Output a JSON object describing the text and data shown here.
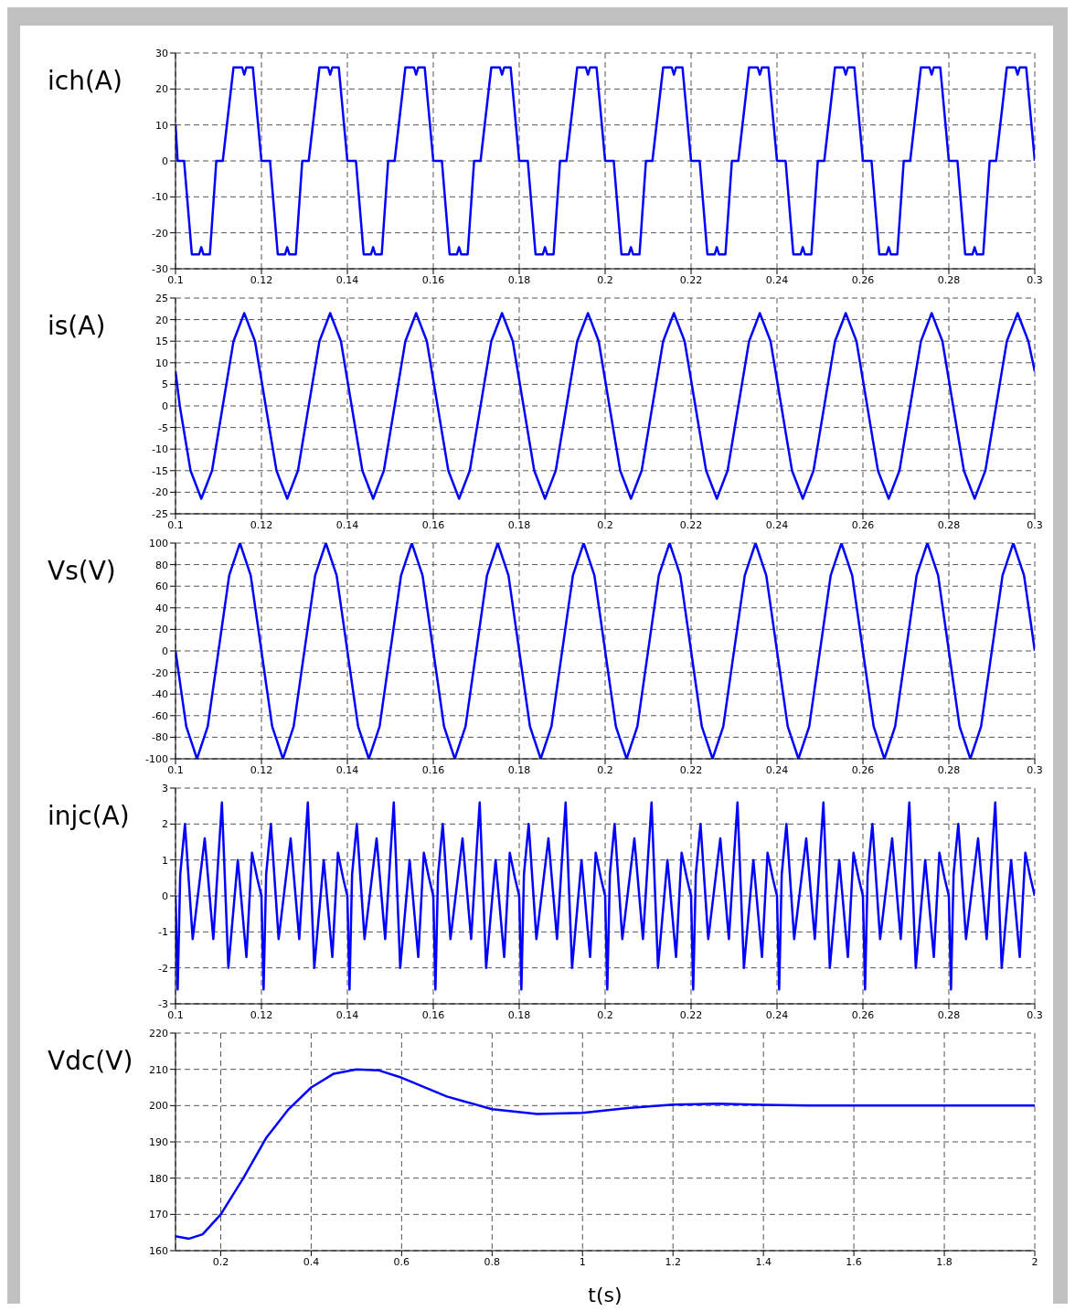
{
  "chart_data": [
    {
      "type": "line",
      "ylabel": "ich(A)",
      "color": "#0000ff",
      "marker": "none",
      "line_style": "solid",
      "grid": true,
      "xlim": [
        0.1,
        0.3
      ],
      "xticks": [
        0.1,
        0.12,
        0.14,
        0.16,
        0.18,
        0.2,
        0.22,
        0.24,
        0.26,
        0.28,
        0.3
      ],
      "ylim": [
        -30,
        30
      ],
      "yticks": [
        -30,
        -20,
        -10,
        0,
        10,
        20,
        30
      ],
      "x": [
        0.1,
        0.1005,
        0.102,
        0.1038,
        0.1055,
        0.106,
        0.1065,
        0.108,
        0.1095,
        0.111,
        0.1135,
        0.1155,
        0.116,
        0.1165,
        0.118,
        0.12,
        0.122,
        0.1238,
        0.1255,
        0.126,
        0.1265,
        0.128,
        0.1295,
        0.131,
        0.1335,
        0.1355,
        0.136,
        0.1365,
        0.138,
        0.14,
        0.142,
        0.1438,
        0.1455,
        0.146,
        0.1465,
        0.148,
        0.1495,
        0.151,
        0.1535,
        0.1555,
        0.156,
        0.1565,
        0.158,
        0.16,
        0.162,
        0.1638,
        0.1655,
        0.166,
        0.1665,
        0.168,
        0.1695,
        0.171,
        0.1735,
        0.1755,
        0.176,
        0.1765,
        0.178,
        0.18,
        0.182,
        0.1838,
        0.1855,
        0.186,
        0.1865,
        0.188,
        0.1895,
        0.191,
        0.1935,
        0.1955,
        0.196,
        0.1965,
        0.198,
        0.2,
        0.202,
        0.2038,
        0.2055,
        0.206,
        0.2065,
        0.208,
        0.2095,
        0.211,
        0.2135,
        0.2155,
        0.216,
        0.2165,
        0.218,
        0.22,
        0.222,
        0.2238,
        0.2255,
        0.226,
        0.2265,
        0.228,
        0.2295,
        0.231,
        0.2335,
        0.2355,
        0.236,
        0.2365,
        0.238,
        0.24,
        0.242,
        0.2438,
        0.2455,
        0.246,
        0.2465,
        0.248,
        0.2495,
        0.251,
        0.2535,
        0.2555,
        0.256,
        0.2565,
        0.258,
        0.26,
        0.262,
        0.2638,
        0.2655,
        0.266,
        0.2665,
        0.268,
        0.2695,
        0.271,
        0.2735,
        0.2755,
        0.276,
        0.2765,
        0.278,
        0.28,
        0.282,
        0.2838,
        0.2855,
        0.286,
        0.2865,
        0.288,
        0.2895,
        0.291,
        0.2935,
        0.2955,
        0.296,
        0.2965,
        0.298,
        0.3
      ],
      "values": [
        10,
        0,
        0,
        -26,
        -26,
        -24,
        -26,
        -26,
        0,
        0,
        26,
        26,
        24,
        26,
        26,
        0,
        0,
        -26,
        -26,
        -24,
        -26,
        -26,
        0,
        0,
        26,
        26,
        24,
        26,
        26,
        0,
        0,
        -26,
        -26,
        -24,
        -26,
        -26,
        0,
        0,
        26,
        26,
        24,
        26,
        26,
        0,
        0,
        -26,
        -26,
        -24,
        -26,
        -26,
        0,
        0,
        26,
        26,
        24,
        26,
        26,
        0,
        0,
        -26,
        -26,
        -24,
        -26,
        -26,
        0,
        0,
        26,
        26,
        24,
        26,
        26,
        0,
        0,
        -26,
        -26,
        -24,
        -26,
        -26,
        0,
        0,
        26,
        26,
        24,
        26,
        26,
        0,
        0,
        -26,
        -26,
        -24,
        -26,
        -26,
        0,
        0,
        26,
        26,
        24,
        26,
        26,
        0,
        0,
        -26,
        -26,
        -24,
        -26,
        -26,
        0,
        0,
        26,
        26,
        24,
        26,
        26,
        0,
        0,
        -26,
        -26,
        -24,
        -26,
        -26,
        0,
        0,
        26,
        26,
        24,
        26,
        26,
        0,
        0,
        -26,
        -26,
        -24,
        -26,
        -26,
        0,
        0,
        26,
        26,
        24,
        26,
        26,
        0
      ]
    },
    {
      "type": "line",
      "ylabel": "is(A)",
      "color": "#0000ff",
      "marker": "none",
      "line_style": "solid",
      "grid": true,
      "xlim": [
        0.1,
        0.3
      ],
      "xticks": [
        0.1,
        0.12,
        0.14,
        0.16,
        0.18,
        0.2,
        0.22,
        0.24,
        0.26,
        0.28,
        0.3
      ],
      "ylim": [
        -25,
        25
      ],
      "yticks": [
        -25,
        -20,
        -15,
        -10,
        -5,
        0,
        5,
        10,
        15,
        20,
        25
      ],
      "x": [
        0.1,
        0.101,
        0.1035,
        0.106,
        0.1085,
        0.111,
        0.1135,
        0.116,
        0.1185,
        0.121,
        0.1235,
        0.126,
        0.1285,
        0.131,
        0.1335,
        0.136,
        0.1385,
        0.141,
        0.1435,
        0.146,
        0.1485,
        0.151,
        0.1535,
        0.156,
        0.1585,
        0.161,
        0.1635,
        0.166,
        0.1685,
        0.171,
        0.1735,
        0.176,
        0.1785,
        0.181,
        0.1835,
        0.186,
        0.1885,
        0.191,
        0.1935,
        0.196,
        0.1985,
        0.201,
        0.2035,
        0.206,
        0.2085,
        0.211,
        0.2135,
        0.216,
        0.2185,
        0.221,
        0.2235,
        0.226,
        0.2285,
        0.231,
        0.2335,
        0.236,
        0.2385,
        0.241,
        0.2435,
        0.246,
        0.2485,
        0.251,
        0.2535,
        0.256,
        0.2585,
        0.261,
        0.2635,
        0.266,
        0.2685,
        0.271,
        0.2735,
        0.276,
        0.2785,
        0.281,
        0.2835,
        0.286,
        0.2885,
        0.291,
        0.2935,
        0.296,
        0.2985,
        0.3
      ],
      "values": [
        8,
        0,
        -15,
        -21.5,
        -15,
        0,
        15,
        21.5,
        15,
        0,
        -15,
        -21.5,
        -15,
        0,
        15,
        21.5,
        15,
        0,
        -15,
        -21.5,
        -15,
        0,
        15,
        21.5,
        15,
        0,
        -15,
        -21.5,
        -15,
        0,
        15,
        21.5,
        15,
        0,
        -15,
        -21.5,
        -15,
        0,
        15,
        21.5,
        15,
        0,
        -15,
        -21.5,
        -15,
        0,
        15,
        21.5,
        15,
        0,
        -15,
        -21.5,
        -15,
        0,
        15,
        21.5,
        15,
        0,
        -15,
        -21.5,
        -15,
        0,
        15,
        21.5,
        15,
        0,
        -15,
        -21.5,
        -15,
        0,
        15,
        21.5,
        15,
        0,
        -15,
        -21.5,
        -15,
        0,
        15,
        21.5,
        15,
        8
      ]
    },
    {
      "type": "line",
      "ylabel": "Vs(V)",
      "color": "#0000ff",
      "marker": "none",
      "line_style": "solid",
      "grid": true,
      "xlim": [
        0.1,
        0.3
      ],
      "xticks": [
        0.1,
        0.12,
        0.14,
        0.16,
        0.18,
        0.2,
        0.22,
        0.24,
        0.26,
        0.28,
        0.3
      ],
      "ylim": [
        -100,
        100
      ],
      "yticks": [
        -100,
        -80,
        -60,
        -40,
        -20,
        0,
        20,
        40,
        60,
        80,
        100
      ],
      "x": [
        0.1,
        0.1025,
        0.105,
        0.1075,
        0.11,
        0.1125,
        0.115,
        0.1175,
        0.12,
        0.1225,
        0.125,
        0.1275,
        0.13,
        0.1325,
        0.135,
        0.1375,
        0.14,
        0.1425,
        0.145,
        0.1475,
        0.15,
        0.1525,
        0.155,
        0.1575,
        0.16,
        0.1625,
        0.165,
        0.1675,
        0.17,
        0.1725,
        0.175,
        0.1775,
        0.18,
        0.1825,
        0.185,
        0.1875,
        0.19,
        0.1925,
        0.195,
        0.1975,
        0.2,
        0.2025,
        0.205,
        0.2075,
        0.21,
        0.2125,
        0.215,
        0.2175,
        0.22,
        0.2225,
        0.225,
        0.2275,
        0.23,
        0.2325,
        0.235,
        0.2375,
        0.24,
        0.2425,
        0.245,
        0.2475,
        0.25,
        0.2525,
        0.255,
        0.2575,
        0.26,
        0.2625,
        0.265,
        0.2675,
        0.27,
        0.2725,
        0.275,
        0.2775,
        0.28,
        0.2825,
        0.285,
        0.2875,
        0.29,
        0.2925,
        0.295,
        0.2975,
        0.3
      ],
      "values": [
        0,
        -70,
        -100,
        -70,
        0,
        70,
        100,
        70,
        0,
        -70,
        -100,
        -70,
        0,
        70,
        100,
        70,
        0,
        -70,
        -100,
        -70,
        0,
        70,
        100,
        70,
        0,
        -70,
        -100,
        -70,
        0,
        70,
        100,
        70,
        0,
        -70,
        -100,
        -70,
        0,
        70,
        100,
        70,
        0,
        -70,
        -100,
        -70,
        0,
        70,
        100,
        70,
        0,
        -70,
        -100,
        -70,
        0,
        70,
        100,
        70,
        0,
        -70,
        -100,
        -70,
        0,
        70,
        100,
        70,
        0,
        -70,
        -100,
        -70,
        0,
        70,
        100,
        70,
        0,
        -70,
        -100,
        -70,
        0,
        70,
        100,
        70,
        0
      ]
    },
    {
      "type": "line",
      "ylabel": "injc(A)",
      "color": "#0000ff",
      "marker": "none",
      "line_style": "solid",
      "grid": true,
      "xlim": [
        0.1,
        0.3
      ],
      "xticks": [
        0.1,
        0.12,
        0.14,
        0.16,
        0.18,
        0.2,
        0.22,
        0.24,
        0.26,
        0.28,
        0.3
      ],
      "ylim": [
        -3,
        3
      ],
      "yticks": [
        -3,
        -2,
        -1,
        0,
        1,
        2,
        3
      ],
      "x": [
        0.1,
        0.1005,
        0.1011,
        0.1022,
        0.104,
        0.1068,
        0.1088,
        0.11,
        0.1108,
        0.1123,
        0.1145,
        0.1165,
        0.1178,
        0.119,
        0.12,
        0.1205,
        0.1211,
        0.1222,
        0.124,
        0.1268,
        0.1288,
        0.13,
        0.1308,
        0.1323,
        0.1345,
        0.1365,
        0.1378,
        0.139,
        0.14,
        0.1405,
        0.1411,
        0.1422,
        0.144,
        0.1468,
        0.1488,
        0.15,
        0.1508,
        0.1523,
        0.1545,
        0.1565,
        0.1578,
        0.159,
        0.16,
        0.1605,
        0.1611,
        0.1622,
        0.164,
        0.1668,
        0.1688,
        0.17,
        0.1708,
        0.1723,
        0.1745,
        0.1765,
        0.1778,
        0.179,
        0.18,
        0.1805,
        0.1811,
        0.1822,
        0.184,
        0.1868,
        0.1888,
        0.19,
        0.1908,
        0.1923,
        0.1945,
        0.1965,
        0.1978,
        0.199,
        0.2,
        0.2005,
        0.2011,
        0.2022,
        0.204,
        0.2068,
        0.2088,
        0.21,
        0.2108,
        0.2123,
        0.2145,
        0.2165,
        0.2178,
        0.219,
        0.22,
        0.2205,
        0.2211,
        0.2222,
        0.224,
        0.2268,
        0.2288,
        0.23,
        0.2308,
        0.2323,
        0.2345,
        0.2365,
        0.2378,
        0.239,
        0.24,
        0.2405,
        0.2411,
        0.2422,
        0.244,
        0.2468,
        0.2488,
        0.25,
        0.2508,
        0.2523,
        0.2545,
        0.2565,
        0.2578,
        0.259,
        0.26,
        0.2605,
        0.2611,
        0.2622,
        0.264,
        0.2668,
        0.2688,
        0.27,
        0.2708,
        0.2723,
        0.2745,
        0.2765,
        0.2778,
        0.279,
        0.28,
        0.2805,
        0.2811,
        0.2822,
        0.284,
        0.2868,
        0.2888,
        0.29,
        0.2908,
        0.2923,
        0.2945,
        0.2965,
        0.2978,
        0.299,
        0.3
      ],
      "values": [
        0,
        -2.6,
        0.6,
        2,
        -1.2,
        1.6,
        -1.2,
        1.1,
        2.6,
        -2,
        1,
        -1.7,
        1.2,
        0.5,
        0,
        -2.6,
        0.6,
        2,
        -1.2,
        1.6,
        -1.2,
        1.1,
        2.6,
        -2,
        1,
        -1.7,
        1.2,
        0.5,
        0,
        -2.6,
        0.6,
        2,
        -1.2,
        1.6,
        -1.2,
        1.1,
        2.6,
        -2,
        1,
        -1.7,
        1.2,
        0.5,
        0,
        -2.6,
        0.6,
        2,
        -1.2,
        1.6,
        -1.2,
        1.1,
        2.6,
        -2,
        1,
        -1.7,
        1.2,
        0.5,
        0,
        -2.6,
        0.6,
        2,
        -1.2,
        1.6,
        -1.2,
        1.1,
        2.6,
        -2,
        1,
        -1.7,
        1.2,
        0.5,
        0,
        -2.6,
        0.6,
        2,
        -1.2,
        1.6,
        -1.2,
        1.1,
        2.6,
        -2,
        1,
        -1.7,
        1.2,
        0.5,
        0,
        -2.6,
        0.6,
        2,
        -1.2,
        1.6,
        -1.2,
        1.1,
        2.6,
        -2,
        1,
        -1.7,
        1.2,
        0.5,
        0,
        -2.6,
        0.6,
        2,
        -1.2,
        1.6,
        -1.2,
        1.1,
        2.6,
        -2,
        1,
        -1.7,
        1.2,
        0.5,
        0,
        -2.6,
        0.6,
        2,
        -1.2,
        1.6,
        -1.2,
        1.1,
        2.6,
        -2,
        1,
        -1.7,
        1.2,
        0.5,
        0,
        -2.6,
        0.6,
        2,
        -1.2,
        1.6,
        -1.2,
        1.1,
        2.6,
        -2,
        1,
        -1.7,
        1.2,
        0.5,
        0
      ]
    },
    {
      "type": "line",
      "ylabel": "Vdc(V)",
      "xlabel": "t(s)",
      "color": "#0000ff",
      "marker": "none",
      "line_style": "solid",
      "grid": true,
      "xlim": [
        0.1,
        2
      ],
      "xticks": [
        0.2,
        0.4,
        0.6,
        0.8,
        1,
        1.2,
        1.4,
        1.6,
        1.8,
        2
      ],
      "ylim": [
        160,
        220
      ],
      "yticks": [
        160,
        170,
        180,
        190,
        200,
        210,
        220
      ],
      "x": [
        0.1,
        0.13,
        0.16,
        0.2,
        0.25,
        0.3,
        0.35,
        0.4,
        0.45,
        0.5,
        0.55,
        0.6,
        0.7,
        0.8,
        0.9,
        1,
        1.1,
        1.2,
        1.3,
        1.4,
        1.5,
        1.6,
        1.8,
        2
      ],
      "values": [
        164,
        163.3,
        164.5,
        170,
        180,
        191,
        199,
        205,
        208.8,
        210,
        209.7,
        207.7,
        202.5,
        199,
        197.7,
        198,
        199.3,
        200.3,
        200.5,
        200.2,
        200,
        200,
        200,
        200
      ]
    }
  ]
}
